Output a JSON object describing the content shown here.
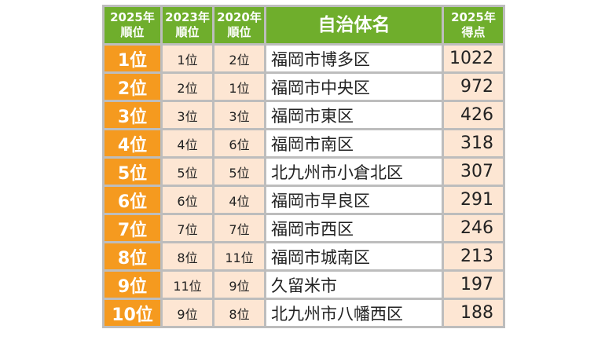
{
  "header": {
    "rank_2025": [
      "2025年",
      "順位"
    ],
    "rank_2023": [
      "2023年",
      "順位"
    ],
    "rank_2020": [
      "2020年",
      "順位"
    ],
    "municipality": "自治体名",
    "score_2025": [
      "2025年",
      "得点"
    ]
  },
  "rows": [
    {
      "rank_2025": "1位",
      "rank_2023": "1位",
      "rank_2020": "2位",
      "name": "福岡市博多区",
      "score": "1022"
    },
    {
      "rank_2025": "2位",
      "rank_2023": "2位",
      "rank_2020": "1位",
      "name": "福岡市中央区",
      "score": "972"
    },
    {
      "rank_2025": "3位",
      "rank_2023": "3位",
      "rank_2020": "3位",
      "name": "福岡市東区",
      "score": "426"
    },
    {
      "rank_2025": "4位",
      "rank_2023": "4位",
      "rank_2020": "6位",
      "name": "福岡市南区",
      "score": "318"
    },
    {
      "rank_2025": "5位",
      "rank_2023": "5位",
      "rank_2020": "5位",
      "name": "北九州市小倉北区",
      "score": "307"
    },
    {
      "rank_2025": "6位",
      "rank_2023": "6位",
      "rank_2020": "4位",
      "name": "福岡市早良区",
      "score": "291"
    },
    {
      "rank_2025": "7位",
      "rank_2023": "7位",
      "rank_2020": "7位",
      "name": "福岡市西区",
      "score": "246"
    },
    {
      "rank_2025": "8位",
      "rank_2023": "8位",
      "rank_2020": "11位",
      "name": "福岡市城南区",
      "score": "213"
    },
    {
      "rank_2025": "9位",
      "rank_2023": "11位",
      "rank_2020": "9位",
      "name": "久留米市",
      "score": "197"
    },
    {
      "rank_2025": "10位",
      "rank_2023": "9位",
      "rank_2020": "8位",
      "name": "北九州市八幡西区",
      "score": "188"
    }
  ],
  "colors": {
    "header_green": "#6fae2c",
    "rank_orange": "#f59a1f",
    "peach_cell": "#fde6d3",
    "border_gray": "#bdbdbd"
  }
}
